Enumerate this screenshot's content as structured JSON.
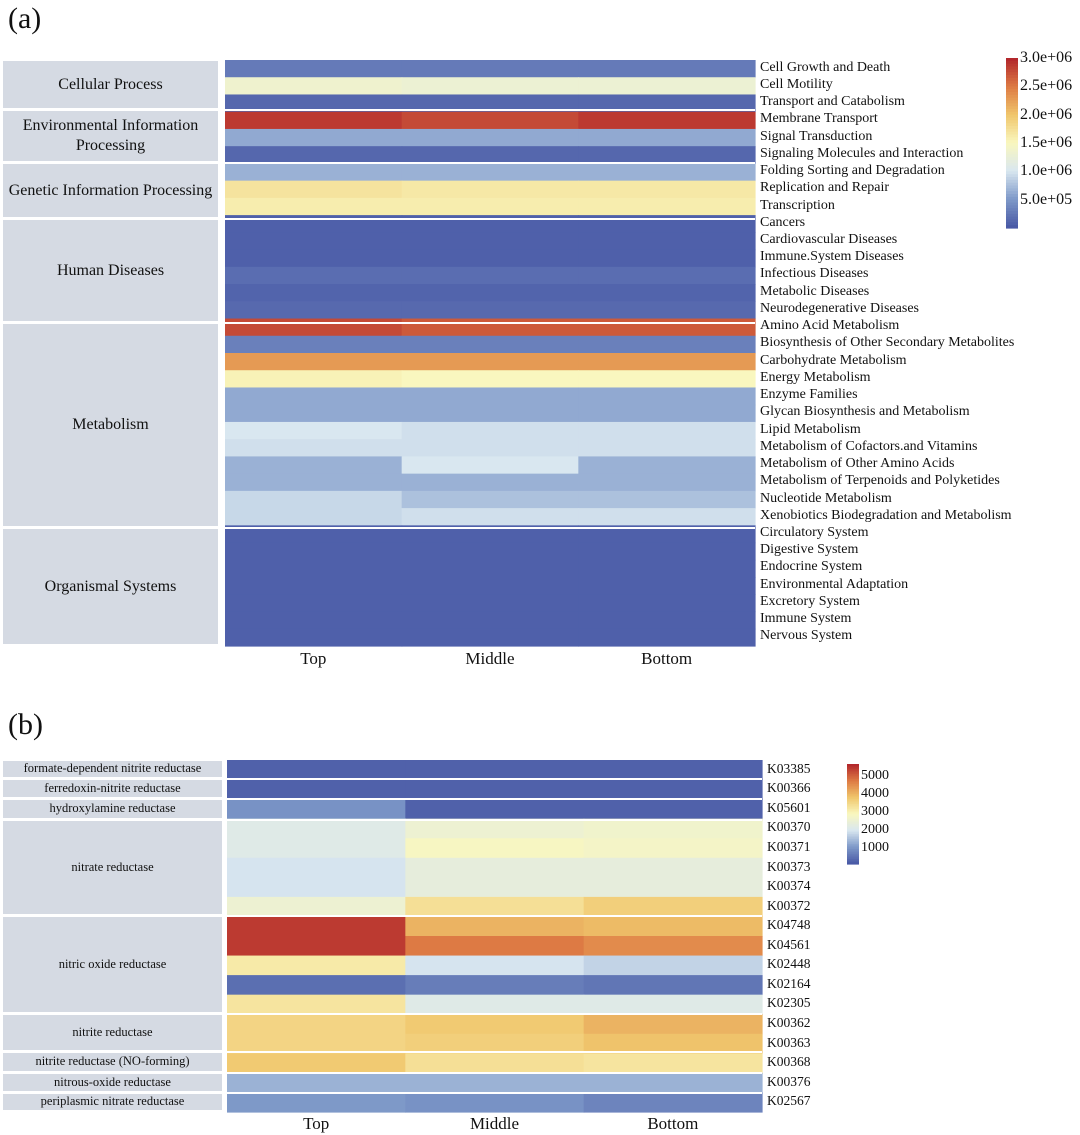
{
  "chart_data": [
    {
      "type": "heatmap",
      "panel": "(a)",
      "columns": [
        "Top",
        "Middle",
        "Bottom"
      ],
      "groups": [
        {
          "name": "Cellular Process",
          "rows": 3
        },
        {
          "name": "Environmental Information Processing",
          "rows": 3
        },
        {
          "name": "Genetic Information Processing",
          "rows": 3
        },
        {
          "name": "Human Diseases",
          "rows": 6
        },
        {
          "name": "Metabolism",
          "rows": 12
        },
        {
          "name": "Organismal Systems",
          "rows": 7
        }
      ],
      "rows": [
        {
          "label": "Cell Growth and Death",
          "values": [
            250000,
            250000,
            250000
          ]
        },
        {
          "label": "Cell Motility",
          "values": [
            1350000,
            1300000,
            1300000
          ]
        },
        {
          "label": "Transport and Catabolism",
          "values": [
            100000,
            100000,
            100000
          ]
        },
        {
          "label": "Membrane Transport",
          "values": [
            2900000,
            2800000,
            2900000
          ]
        },
        {
          "label": "Signal Transduction",
          "values": [
            600000,
            600000,
            600000
          ]
        },
        {
          "label": "Signaling Molecules and Interaction",
          "values": [
            100000,
            100000,
            100000
          ]
        },
        {
          "label": "Folding Sorting and Degradation",
          "values": [
            650000,
            650000,
            650000
          ]
        },
        {
          "label": "Replication and Repair",
          "values": [
            1700000,
            1650000,
            1650000
          ]
        },
        {
          "label": "Transcription",
          "values": [
            1600000,
            1600000,
            1600000
          ]
        },
        {
          "label": "Cancers",
          "values": [
            50000,
            50000,
            50000
          ]
        },
        {
          "label": "Cardiovascular Diseases",
          "values": [
            50000,
            50000,
            50000
          ]
        },
        {
          "label": "Immune.System Diseases",
          "values": [
            50000,
            50000,
            50000
          ]
        },
        {
          "label": "Infectious Diseases",
          "values": [
            150000,
            150000,
            150000
          ]
        },
        {
          "label": "Metabolic Diseases",
          "values": [
            80000,
            80000,
            80000
          ]
        },
        {
          "label": "Neurodegenerative Diseases",
          "values": [
            120000,
            120000,
            120000
          ]
        },
        {
          "label": "Amino Acid Metabolism",
          "values": [
            2800000,
            2700000,
            2700000
          ]
        },
        {
          "label": "Biosynthesis of Other Secondary Metabolites",
          "values": [
            300000,
            300000,
            300000
          ]
        },
        {
          "label": "Carbohydrate Metabolism",
          "values": [
            2300000,
            2300000,
            2300000
          ]
        },
        {
          "label": "Energy Metabolism",
          "values": [
            1550000,
            1500000,
            1500000
          ]
        },
        {
          "label": "Enzyme Families",
          "values": [
            600000,
            600000,
            600000
          ]
        },
        {
          "label": "Glycan Biosynthesis and Metabolism",
          "values": [
            600000,
            600000,
            600000
          ]
        },
        {
          "label": "Lipid Metabolism",
          "values": [
            1000000,
            950000,
            950000
          ]
        },
        {
          "label": "Metabolism of Cofactors.and Vitamins",
          "values": [
            950000,
            950000,
            950000
          ]
        },
        {
          "label": "Metabolism of Other Amino Acids",
          "values": [
            650000,
            1000000,
            650000
          ]
        },
        {
          "label": "Metabolism of Terpenoids and Polyketides",
          "values": [
            650000,
            650000,
            650000
          ]
        },
        {
          "label": "Nucleotide Metabolism",
          "values": [
            900000,
            750000,
            750000
          ]
        },
        {
          "label": "Xenobiotics Biodegradation and Metabolism",
          "values": [
            900000,
            950000,
            950000
          ]
        },
        {
          "label": "Circulatory System",
          "values": [
            50000,
            50000,
            50000
          ]
        },
        {
          "label": "Digestive System",
          "values": [
            50000,
            50000,
            50000
          ]
        },
        {
          "label": "Endocrine System",
          "values": [
            50000,
            50000,
            50000
          ]
        },
        {
          "label": "Environmental Adaptation",
          "values": [
            50000,
            50000,
            50000
          ]
        },
        {
          "label": "Excretory System",
          "values": [
            50000,
            50000,
            50000
          ]
        },
        {
          "label": "Immune System",
          "values": [
            50000,
            50000,
            50000
          ]
        },
        {
          "label": "Nervous System",
          "values": [
            50000,
            50000,
            50000
          ]
        }
      ],
      "colorbar": {
        "min": 0,
        "max": 3000000,
        "ticks": [
          {
            "value": 3000000,
            "label": "3.0e+06"
          },
          {
            "value": 2500000,
            "label": "2.5e+06"
          },
          {
            "value": 2000000,
            "label": "2.0e+06"
          },
          {
            "value": 1500000,
            "label": "1.5e+06"
          },
          {
            "value": 1000000,
            "label": "1.0e+06"
          },
          {
            "value": 500000,
            "label": "5.0e+05"
          }
        ]
      }
    },
    {
      "type": "heatmap",
      "panel": "(b)",
      "columns": [
        "Top",
        "Middle",
        "Bottom"
      ],
      "groups": [
        {
          "name": "formate-dependent nitrite reductase",
          "rows": 1
        },
        {
          "name": "ferredoxin-nitrite reductase",
          "rows": 1
        },
        {
          "name": "hydroxylamine reductase",
          "rows": 1
        },
        {
          "name": "nitrate reductase",
          "rows": 5
        },
        {
          "name": "nitric oxide reductase",
          "rows": 5
        },
        {
          "name": "nitrite reductase",
          "rows": 2
        },
        {
          "name": "nitrite reductase (NO-forming)",
          "rows": 1
        },
        {
          "name": "nitrous-oxide reductase",
          "rows": 1
        },
        {
          "name": "periplasmic nitrate reductase",
          "rows": 1
        }
      ],
      "rows": [
        {
          "label": "K03385",
          "values": [
            300,
            300,
            300
          ]
        },
        {
          "label": "K00366",
          "values": [
            300,
            300,
            300
          ]
        },
        {
          "label": "K05601",
          "values": [
            1000,
            300,
            300
          ]
        },
        {
          "label": "K00370",
          "values": [
            2200,
            2600,
            2700
          ]
        },
        {
          "label": "K00371",
          "values": [
            2200,
            2900,
            2800
          ]
        },
        {
          "label": "K00373",
          "values": [
            2000,
            2400,
            2400
          ]
        },
        {
          "label": "K00374",
          "values": [
            2000,
            2400,
            2400
          ]
        },
        {
          "label": "K00372",
          "values": [
            2600,
            3400,
            3700
          ]
        },
        {
          "label": "K04748",
          "values": [
            5500,
            4100,
            4000
          ]
        },
        {
          "label": "K04561",
          "values": [
            5500,
            4800,
            4600
          ]
        },
        {
          "label": "K02448",
          "values": [
            3200,
            2000,
            1800
          ]
        },
        {
          "label": "K02164",
          "values": [
            500,
            700,
            600
          ]
        },
        {
          "label": "K02305",
          "values": [
            3300,
            2200,
            2200
          ]
        },
        {
          "label": "K00362",
          "values": [
            3600,
            3800,
            4100
          ]
        },
        {
          "label": "K00363",
          "values": [
            3600,
            3700,
            3900
          ]
        },
        {
          "label": "K00368",
          "values": [
            3800,
            3400,
            3300
          ]
        },
        {
          "label": "K00376",
          "values": [
            1400,
            1400,
            1400
          ]
        },
        {
          "label": "K02567",
          "values": [
            1100,
            1000,
            800
          ]
        }
      ],
      "colorbar": {
        "min": 200,
        "max": 5700,
        "ticks": [
          {
            "value": 5000,
            "label": "5000"
          },
          {
            "value": 4000,
            "label": "4000"
          },
          {
            "value": 3000,
            "label": "3000"
          },
          {
            "value": 2000,
            "label": "2000"
          },
          {
            "value": 1000,
            "label": "1000"
          }
        ]
      }
    }
  ],
  "colormap": [
    "#4a5aa6",
    "#7f9ac9",
    "#d9e7f0",
    "#f9f7bf",
    "#f0c66c",
    "#de7c44",
    "#b3282c"
  ]
}
